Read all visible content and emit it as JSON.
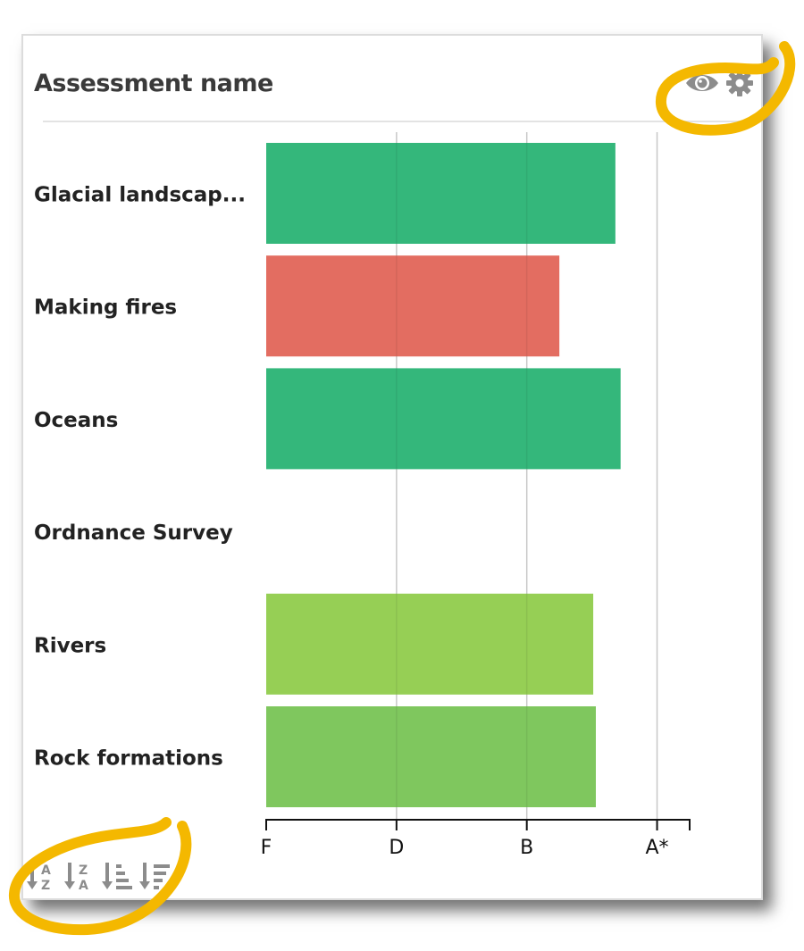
{
  "card": {
    "title": "Assessment name"
  },
  "icons": {
    "visibility": "eye-icon",
    "settings": "gear-icon",
    "sort_az": "sort-alpha-asc-icon",
    "sort_za": "sort-alpha-desc-icon",
    "sort_num_asc": "sort-numeric-asc-icon",
    "sort_num_desc": "sort-numeric-desc-icon"
  },
  "colors": {
    "icon": "#8c8c8c",
    "highlight": "#f4b800",
    "grid": "#d8d8d8",
    "label": "#222222"
  },
  "chart_data": {
    "type": "bar",
    "orientation": "horizontal",
    "categories": [
      "Glacial landscap...",
      "Making fires",
      "Oceans",
      "Ordnance Survey",
      "Rivers",
      "Rock formations"
    ],
    "x_ticks": [
      "F",
      "D",
      "B",
      "A*"
    ],
    "values": [
      2.68,
      2.25,
      2.72,
      null,
      2.51,
      2.53
    ],
    "xlim": [
      0,
      3.25
    ],
    "bar_colors": [
      "#34b77b",
      "#e36d61",
      "#34b77b",
      "#34b77b",
      "#96cf55",
      "#7fc75e"
    ],
    "grid": true
  }
}
